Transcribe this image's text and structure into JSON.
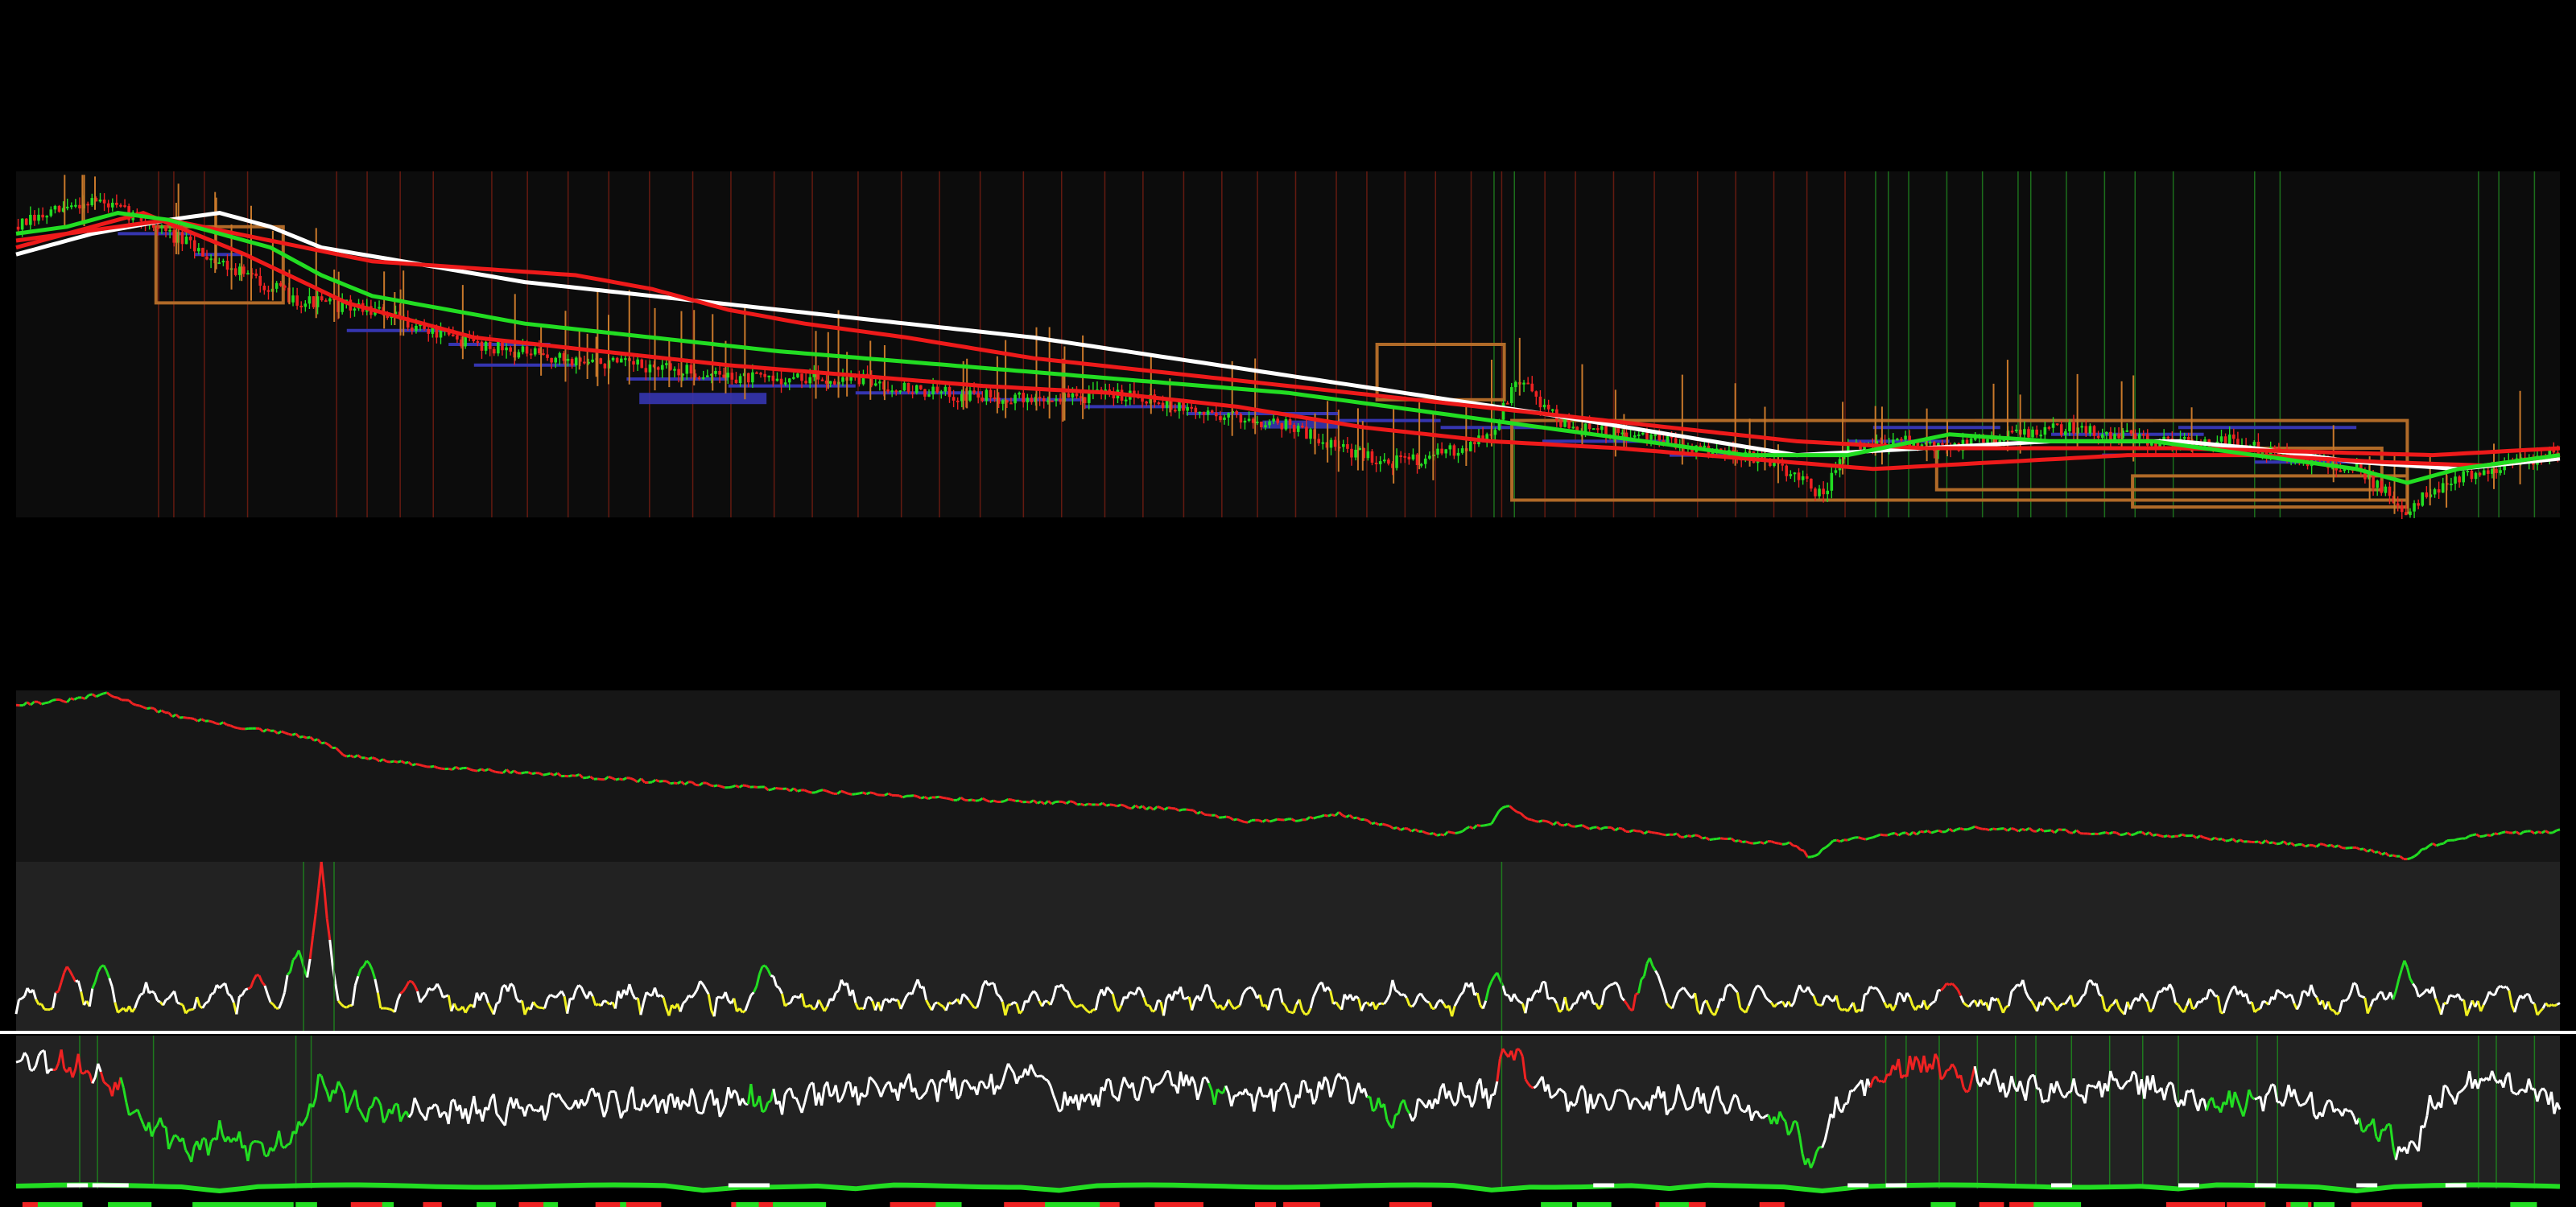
{
  "theme": {
    "background": "#000000",
    "panel_dark": "#0c0c0c",
    "panel_mid": "#161616",
    "panel_light": "#222222",
    "up_color": "#22dd22",
    "down_color": "#ee2222",
    "wick_color": "#c8782a",
    "level_color": "#3535b0",
    "box_color": "#b06a28",
    "ma_fast_color": "#ee1a1a",
    "ma_slow_color": "#ffffff",
    "ma_green_color": "#22dd22",
    "osc_neutral_color": "#ffffff",
    "osc_low_color": "#f0f020",
    "band_line_color": "#ffffff"
  },
  "chart_data": [
    {
      "type": "line",
      "panel": "price",
      "series_count": 7,
      "x_range": [
        0,
        100
      ],
      "y_range": [
        0,
        100
      ],
      "grid": false,
      "legend": "none",
      "price_anchors": [
        [
          0,
          84
        ],
        [
          3,
          92
        ],
        [
          5,
          86
        ],
        [
          8,
          74
        ],
        [
          11,
          63
        ],
        [
          14,
          60
        ],
        [
          17,
          52
        ],
        [
          21,
          46
        ],
        [
          24,
          44
        ],
        [
          29,
          40
        ],
        [
          33,
          40
        ],
        [
          36,
          36
        ],
        [
          40,
          34
        ],
        [
          44,
          36
        ],
        [
          46,
          31
        ],
        [
          50,
          27
        ],
        [
          52,
          20
        ],
        [
          54,
          16
        ],
        [
          56,
          18
        ],
        [
          58,
          24
        ],
        [
          59,
          40
        ],
        [
          61,
          26
        ],
        [
          65,
          22
        ],
        [
          68,
          18
        ],
        [
          70,
          12
        ],
        [
          71,
          6
        ],
        [
          72,
          20
        ],
        [
          74,
          22
        ],
        [
          76,
          20
        ],
        [
          78,
          24
        ],
        [
          81,
          26
        ],
        [
          84,
          22
        ],
        [
          87,
          22
        ],
        [
          89,
          18
        ],
        [
          92,
          14
        ],
        [
          94,
          2
        ],
        [
          95,
          8
        ],
        [
          97,
          14
        ],
        [
          100,
          18
        ]
      ],
      "ma_red_1": [
        [
          0,
          78
        ],
        [
          5,
          88
        ],
        [
          9,
          76
        ],
        [
          13,
          62
        ],
        [
          18,
          52
        ],
        [
          23,
          48
        ],
        [
          28,
          44
        ],
        [
          33,
          41
        ],
        [
          38,
          38
        ],
        [
          43,
          36
        ],
        [
          48,
          32
        ],
        [
          53,
          26
        ],
        [
          58,
          22
        ],
        [
          63,
          20
        ],
        [
          68,
          17
        ],
        [
          73,
          14
        ],
        [
          78,
          16
        ],
        [
          83,
          18
        ],
        [
          88,
          18
        ],
        [
          93,
          16
        ],
        [
          97,
          15
        ],
        [
          100,
          18
        ]
      ],
      "ma_red_2": [
        [
          0,
          80
        ],
        [
          6,
          86
        ],
        [
          10,
          80
        ],
        [
          14,
          74
        ],
        [
          18,
          72
        ],
        [
          22,
          70
        ],
        [
          25,
          66
        ],
        [
          28,
          60
        ],
        [
          31,
          56
        ],
        [
          35,
          52
        ],
        [
          40,
          46
        ],
        [
          45,
          42
        ],
        [
          50,
          38
        ],
        [
          55,
          34
        ],
        [
          60,
          30
        ],
        [
          65,
          26
        ],
        [
          70,
          22
        ],
        [
          75,
          20
        ],
        [
          80,
          20
        ],
        [
          85,
          20
        ],
        [
          90,
          19
        ],
        [
          95,
          18
        ],
        [
          100,
          20
        ]
      ],
      "ma_white": [
        [
          0,
          76
        ],
        [
          3,
          82
        ],
        [
          6,
          86
        ],
        [
          8,
          88
        ],
        [
          10,
          84
        ],
        [
          12,
          78
        ],
        [
          20,
          68
        ],
        [
          40,
          52
        ],
        [
          60,
          30
        ],
        [
          70,
          18
        ],
        [
          75,
          20
        ],
        [
          80,
          22
        ],
        [
          85,
          22
        ],
        [
          88,
          20
        ],
        [
          92,
          16
        ],
        [
          96,
          14
        ],
        [
          100,
          17
        ]
      ],
      "ma_green": [
        [
          0,
          82
        ],
        [
          2,
          84
        ],
        [
          4,
          88
        ],
        [
          6,
          86
        ],
        [
          8,
          82
        ],
        [
          10,
          78
        ],
        [
          12,
          70
        ],
        [
          14,
          64
        ],
        [
          20,
          56
        ],
        [
          30,
          48
        ],
        [
          40,
          42
        ],
        [
          50,
          36
        ],
        [
          60,
          26
        ],
        [
          68,
          18
        ],
        [
          72,
          18
        ],
        [
          76,
          24
        ],
        [
          80,
          22
        ],
        [
          84,
          22
        ],
        [
          88,
          18
        ],
        [
          92,
          14
        ],
        [
          94,
          10
        ],
        [
          96,
          14
        ],
        [
          100,
          18
        ]
      ],
      "support_levels": [
        [
          4,
          7,
          82
        ],
        [
          7,
          9,
          76
        ],
        [
          13,
          17,
          54
        ],
        [
          17,
          21,
          50
        ],
        [
          18,
          22,
          44
        ],
        [
          24,
          28,
          40
        ],
        [
          28,
          33,
          38
        ],
        [
          33,
          38,
          36
        ],
        [
          38,
          42,
          34
        ],
        [
          42,
          46,
          32
        ],
        [
          46,
          52,
          30
        ],
        [
          52,
          56,
          28
        ],
        [
          56,
          60,
          26
        ],
        [
          60,
          65,
          22
        ],
        [
          65,
          70,
          18
        ],
        [
          72,
          76,
          22
        ],
        [
          76,
          82,
          20
        ],
        [
          82,
          88,
          18
        ],
        [
          88,
          93,
          16
        ],
        [
          73,
          78,
          26
        ],
        [
          77,
          84,
          28
        ],
        [
          80,
          86,
          24
        ],
        [
          85,
          92,
          26
        ]
      ],
      "boxes": [
        [
          5.5,
          10.5,
          62,
          84
        ],
        [
          53.5,
          58.5,
          34,
          50
        ],
        [
          58.8,
          94,
          5,
          28
        ],
        [
          75.5,
          93,
          8,
          20
        ],
        [
          83.2,
          94,
          3,
          12
        ]
      ],
      "green_vlines": [
        58.1,
        58.9,
        73.1,
        73.6,
        74.4,
        75.9,
        77.3,
        78.7,
        79.2,
        80.6,
        82.1,
        83.3,
        84.8,
        88,
        89,
        96.8,
        97.6,
        99
      ],
      "red_vlines": [
        5.6,
        6.2,
        7.4,
        9.1,
        12.6,
        13.8,
        15.1,
        16.4,
        18.7,
        20.1,
        21.7,
        23.3,
        24.9,
        26.6,
        28.1,
        29.8,
        31.3,
        33.1,
        34.8,
        36.3,
        37.9,
        39.6,
        41.1,
        42.8,
        44.3,
        45.9,
        47.4,
        48.8,
        50.3,
        51.9,
        53.1,
        54.6,
        55.8,
        57.2,
        58.4,
        60.1,
        61.3,
        62.8,
        64.4,
        66.1,
        67.6,
        69.1,
        70.4,
        71.9
      ]
    },
    {
      "type": "line",
      "panel": "price-overview",
      "series_count": 1,
      "x_range": [
        0,
        100
      ],
      "y_range": [
        0,
        100
      ],
      "grid": false,
      "legend": "none",
      "anchors": [
        [
          0,
          92
        ],
        [
          2,
          94
        ],
        [
          3.5,
          98
        ],
        [
          6,
          86
        ],
        [
          9,
          78
        ],
        [
          11,
          74
        ],
        [
          12,
          70
        ],
        [
          13,
          62
        ],
        [
          16,
          56
        ],
        [
          20,
          52
        ],
        [
          24,
          48
        ],
        [
          28,
          44
        ],
        [
          33,
          40
        ],
        [
          38,
          36
        ],
        [
          42,
          34
        ],
        [
          46,
          30
        ],
        [
          48,
          24
        ],
        [
          50,
          24
        ],
        [
          52,
          28
        ],
        [
          54,
          20
        ],
        [
          56,
          16
        ],
        [
          58,
          22
        ],
        [
          58.5,
          34
        ],
        [
          59.5,
          24
        ],
        [
          62,
          20
        ],
        [
          65,
          16
        ],
        [
          68,
          12
        ],
        [
          70,
          10
        ],
        [
          70.5,
          2
        ],
        [
          71.5,
          12
        ],
        [
          74,
          16
        ],
        [
          77,
          20
        ],
        [
          80,
          18
        ],
        [
          84,
          16
        ],
        [
          88,
          12
        ],
        [
          92,
          8
        ],
        [
          94,
          2
        ],
        [
          95,
          10
        ],
        [
          97,
          16
        ],
        [
          100,
          18
        ]
      ]
    },
    {
      "type": "line",
      "panel": "oscillator-1",
      "series_count": 1,
      "x_range": [
        0,
        100
      ],
      "y_range": [
        0,
        100
      ],
      "grid": false,
      "legend": "none",
      "baseline": 2,
      "seed": 17,
      "spikes": [
        [
          2,
          38
        ],
        [
          3.4,
          40
        ],
        [
          9.5,
          35
        ],
        [
          11.1,
          48
        ],
        [
          12,
          100
        ],
        [
          13.8,
          42
        ],
        [
          15.5,
          30
        ],
        [
          29.4,
          40
        ],
        [
          58.2,
          35
        ],
        [
          64.2,
          44
        ],
        [
          76.1,
          28
        ],
        [
          93.9,
          42
        ]
      ],
      "red_marks": [
        2,
        9.5,
        12,
        15.5,
        63.6,
        76.1
      ],
      "green_marks": [
        3.4,
        11.1,
        13.8,
        29.4,
        58.2,
        64.2,
        93.9
      ]
    },
    {
      "type": "line",
      "panel": "oscillator-2",
      "series_count": 1,
      "x_range": [
        0,
        100
      ],
      "y_range": [
        0,
        100
      ],
      "grid": false,
      "legend": "none",
      "seed": 53,
      "anchors": [
        [
          0,
          86
        ],
        [
          2,
          82
        ],
        [
          4,
          68
        ],
        [
          5,
          46
        ],
        [
          6,
          36
        ],
        [
          7,
          24
        ],
        [
          8,
          34
        ],
        [
          9,
          28
        ],
        [
          10,
          26
        ],
        [
          11,
          38
        ],
        [
          12,
          68
        ],
        [
          14,
          50
        ],
        [
          18,
          50
        ],
        [
          22,
          56
        ],
        [
          26,
          56
        ],
        [
          30,
          58
        ],
        [
          34,
          66
        ],
        [
          38,
          68
        ],
        [
          40,
          76
        ],
        [
          41,
          56
        ],
        [
          44,
          66
        ],
        [
          46,
          70
        ],
        [
          48,
          58
        ],
        [
          50,
          62
        ],
        [
          52,
          70
        ],
        [
          54,
          48
        ],
        [
          56,
          60
        ],
        [
          58,
          62
        ],
        [
          58.6,
          96
        ],
        [
          59.4,
          76
        ],
        [
          61,
          60
        ],
        [
          64,
          56
        ],
        [
          66,
          60
        ],
        [
          68,
          54
        ],
        [
          70,
          38
        ],
        [
          70.5,
          14
        ],
        [
          71.5,
          50
        ],
        [
          73,
          72
        ],
        [
          75,
          84
        ],
        [
          77,
          70
        ],
        [
          79,
          66
        ],
        [
          81,
          62
        ],
        [
          83,
          72
        ],
        [
          85,
          60
        ],
        [
          87,
          54
        ],
        [
          89,
          62
        ],
        [
          91,
          50
        ],
        [
          93,
          40
        ],
        [
          94,
          18
        ],
        [
          95,
          56
        ],
        [
          97,
          72
        ],
        [
          100,
          56
        ]
      ],
      "green_marks": [
        [
          4,
          10
        ],
        [
          12.5,
          3
        ],
        [
          28.8,
          1
        ],
        [
          47,
          0.6
        ],
        [
          53.2,
          1
        ],
        [
          54,
          0.8
        ],
        [
          69,
          1.6
        ],
        [
          70.3,
          0.8
        ],
        [
          86.2,
          1
        ],
        [
          87,
          1
        ],
        [
          92.2,
          1.4
        ]
      ],
      "red_marks": [
        [
          1.5,
          1.5
        ],
        [
          3.4,
          0.8
        ],
        [
          58.3,
          1.4
        ],
        [
          73,
          4
        ]
      ],
      "green_vlines": [
        2.5,
        3.2,
        5.4,
        11,
        11.6,
        58.4,
        73.5,
        74.3,
        75.6,
        77.1,
        78.6,
        79.4,
        80.8,
        82.3,
        83.6,
        85,
        88.1,
        88.9,
        96.8,
        97.5,
        99
      ]
    },
    {
      "type": "line",
      "panel": "trend-band",
      "series_count": 2,
      "x_range": [
        0,
        100
      ],
      "y_range": [
        0,
        100
      ],
      "grid": false,
      "legend": "none",
      "white_dash_x": [
        2,
        3,
        3.6,
        28,
        28.8,
        62,
        72,
        73.5,
        80,
        85,
        88,
        92,
        95.5
      ],
      "dip_x": [
        8,
        27,
        33,
        41,
        58,
        65,
        71,
        85,
        92
      ]
    }
  ]
}
